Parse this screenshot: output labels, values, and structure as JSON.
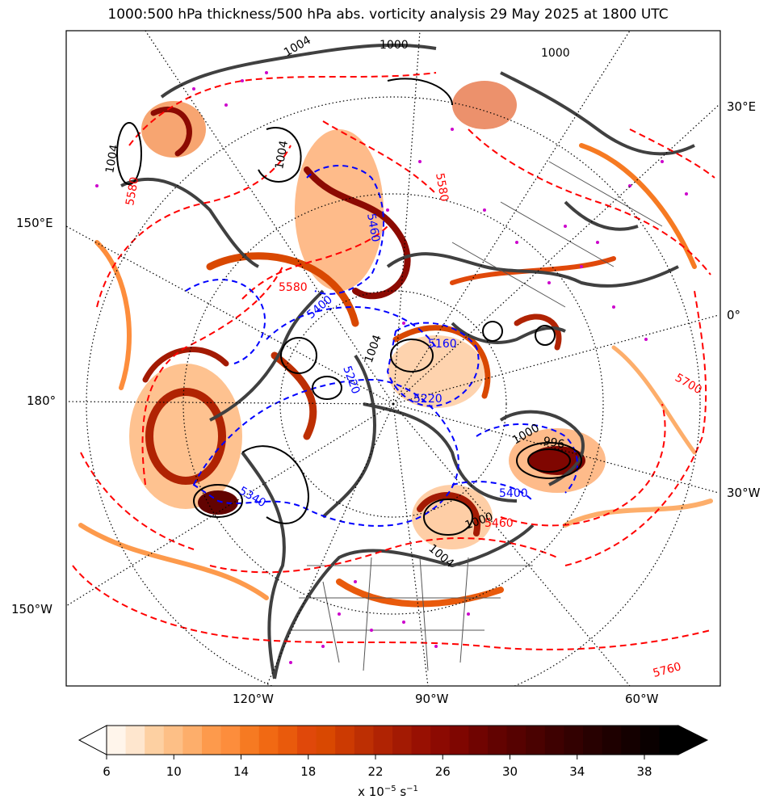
{
  "title": "1000:500 hPa thickness/500 hPa abs. vorticity analysis 29 May 2025 at 1800 UTC",
  "grid_labels": {
    "right": [
      "30°E",
      "0°",
      "30°W"
    ],
    "left": [
      "150°E",
      "180°",
      "150°W"
    ],
    "bottom": [
      "120°W",
      "90°W",
      "60°W"
    ]
  },
  "thickness_contours": {
    "color_warm": "#ff0000",
    "color_cold": "#0000ff",
    "labels_warm": [
      "5580",
      "5700",
      "5760",
      "5580",
      "5580",
      "5460"
    ],
    "labels_cold": [
      "5220",
      "5220",
      "5340",
      "5400",
      "5460",
      "5400",
      "5160"
    ]
  },
  "mslp_contours": {
    "color": "#000000",
    "labels": [
      "1004",
      "1004",
      "1000",
      "996",
      "1000",
      "1004",
      "1000",
      "1004",
      "1000",
      "1004"
    ]
  },
  "colorbar": {
    "ticks": [
      "6",
      "10",
      "14",
      "18",
      "22",
      "26",
      "30",
      "34",
      "38"
    ],
    "unit_prefix": "x 10",
    "unit_exp": "−5",
    "unit_suffix": " s",
    "unit_exp2": "−1",
    "colors": [
      "#fff5eb",
      "#fee6ce",
      "#fdd0a2",
      "#fdbf86",
      "#fdae6b",
      "#fd9a4c",
      "#fd8d3c",
      "#f67a22",
      "#f16913",
      "#e95a0c",
      "#e0480a",
      "#d94801",
      "#cc3a02",
      "#bd2f03",
      "#b02303",
      "#a31a03",
      "#981002",
      "#8c0a02",
      "#7f0601",
      "#700401",
      "#620301",
      "#560201",
      "#4a0201",
      "#3e0101",
      "#330101",
      "#280101",
      "#1e0000",
      "#140000",
      "#0a0000",
      "#000000"
    ]
  }
}
